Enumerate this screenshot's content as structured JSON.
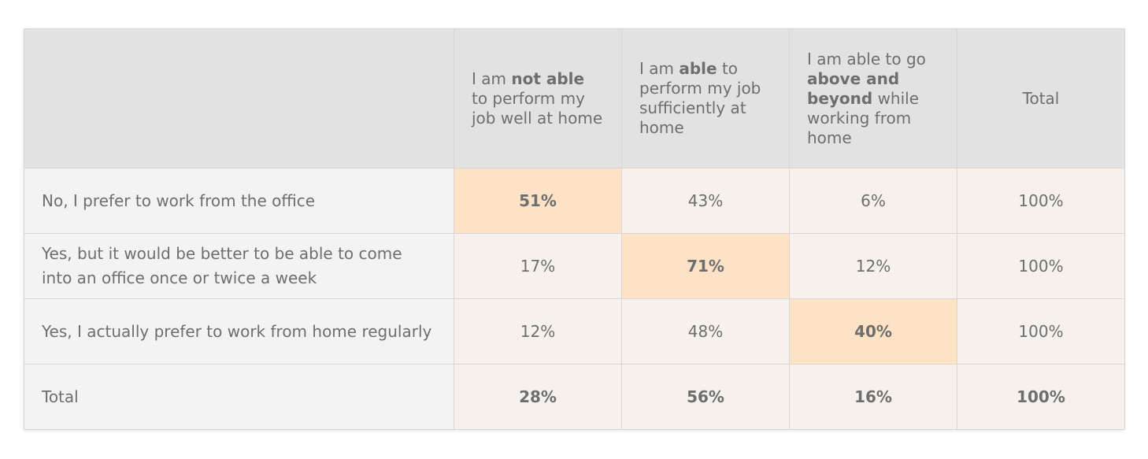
{
  "chart_data": {
    "type": "table",
    "columns": [
      {
        "parts": [
          {
            "t": "I am ",
            "b": false
          },
          {
            "t": "not able",
            "b": true
          },
          {
            "t": " to perform my job well at home",
            "b": false
          }
        ]
      },
      {
        "parts": [
          {
            "t": "I am ",
            "b": false
          },
          {
            "t": "able",
            "b": true
          },
          {
            "t": " to perform my job sufficiently at home",
            "b": false
          }
        ]
      },
      {
        "parts": [
          {
            "t": "I am able to go ",
            "b": false
          },
          {
            "t": "above and beyond",
            "b": true
          },
          {
            "t": " while working from home",
            "b": false
          }
        ]
      },
      {
        "parts": [
          {
            "t": "Total",
            "b": false
          }
        ]
      }
    ],
    "rows": [
      {
        "label": "No, I prefer to work from the office",
        "values": [
          "51%",
          "43%",
          "6%",
          "100%"
        ],
        "highlight": 0
      },
      {
        "label": "Yes, but it would be better to be able to come into an office once or twice a week",
        "values": [
          "17%",
          "71%",
          "12%",
          "100%"
        ],
        "highlight": 1
      },
      {
        "label": "Yes, I actually prefer to work from home regularly",
        "values": [
          "12%",
          "48%",
          "40%",
          "100%"
        ],
        "highlight": 2
      },
      {
        "label": "Total",
        "values": [
          "28%",
          "56%",
          "16%",
          "100%"
        ],
        "highlight": -1,
        "total": true
      }
    ],
    "colors": {
      "highlight": "#fde2c5",
      "cell": "#f6f1ec",
      "label_cell": "#f3f3f3",
      "header": "#e2e2e2",
      "text": "#6e6e6e"
    }
  }
}
